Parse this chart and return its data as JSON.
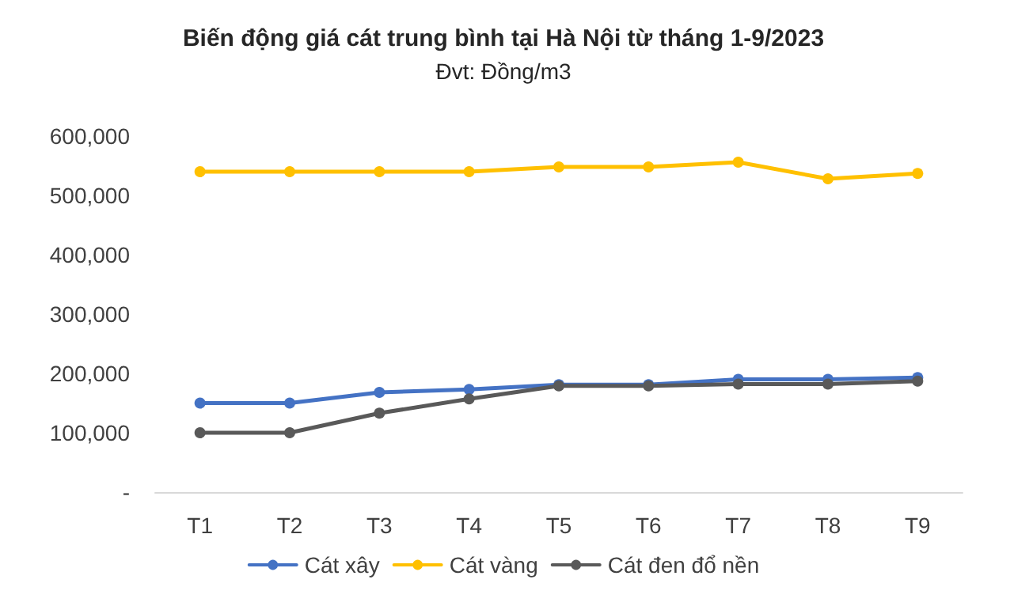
{
  "chart_data": {
    "type": "line",
    "title": "Biến động giá cát trung bình tại Hà Nội từ tháng 1-9/2023",
    "subtitle": "Đvt: Đồng/m3",
    "categories": [
      "T1",
      "T2",
      "T3",
      "T4",
      "T5",
      "T6",
      "T7",
      "T8",
      "T9"
    ],
    "series": [
      {
        "name": "Cát xây",
        "color": "#4472c4",
        "values": [
          150000,
          150000,
          168000,
          173000,
          181000,
          181000,
          190000,
          190000,
          193000
        ]
      },
      {
        "name": "Cát vàng",
        "color": "#ffc000",
        "values": [
          540000,
          540000,
          540000,
          540000,
          548000,
          548000,
          556000,
          528000,
          537000
        ]
      },
      {
        "name": "Cát đen đổ nền",
        "color": "#595959",
        "values": [
          100000,
          100000,
          133000,
          157000,
          179000,
          179000,
          182000,
          182000,
          187000
        ]
      }
    ],
    "ylim": [
      0,
      600000
    ],
    "yticks": [
      {
        "value": 0,
        "label": "-"
      },
      {
        "value": 100000,
        "label": "100,000"
      },
      {
        "value": 200000,
        "label": "200,000"
      },
      {
        "value": 300000,
        "label": "300,000"
      },
      {
        "value": 400000,
        "label": "400,000"
      },
      {
        "value": 500000,
        "label": "500,000"
      },
      {
        "value": 600000,
        "label": "600,000"
      }
    ],
    "grid": false,
    "legend": "bottom",
    "marker": "circle",
    "line_style": "solid"
  }
}
